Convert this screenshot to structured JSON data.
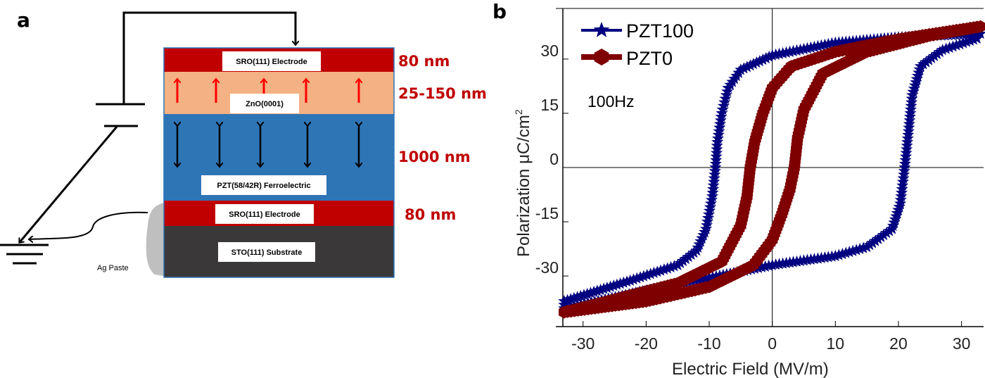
{
  "panel_a": {
    "label": "a",
    "layers": [
      {
        "name": "SRO(111) Electrode",
        "thickness": "80 nm",
        "color": "#c00000"
      },
      {
        "name": "ZnO(0001)",
        "thickness": "25-150 nm",
        "color": "#f4b183"
      },
      {
        "name": "PZT(58/42R) Ferroelectric",
        "thickness": "1000 nm",
        "color": "#2e75b6"
      },
      {
        "name": "SRO(111) Electrode",
        "thickness": "80 nm",
        "color": "#c00000"
      },
      {
        "name": "STO(111) Substrate",
        "color": "#3a3838"
      }
    ],
    "ag_paste": "Ag Paste",
    "thickness_color": "#c00000"
  },
  "panel_b": {
    "label": "b"
  },
  "chart_data": {
    "type": "line",
    "xlabel": "Electric Field (MV/m)",
    "ylabel": "Polarization μC/cm²",
    "ylabel_main": "Polarization μC/cm",
    "ylabel_sup": "2",
    "annotation": "100Hz",
    "xlim": [
      -33.2,
      33.5
    ],
    "ylim": [
      -44,
      44
    ],
    "xticks": [
      -30,
      -20,
      -10,
      0,
      10,
      20,
      30
    ],
    "yticks": [
      -30,
      -15,
      0,
      15,
      30
    ],
    "xtick_labels": [
      "-30",
      "-20",
      "-10",
      "0",
      "10",
      "20",
      "30"
    ],
    "ytick_labels": [
      "-30",
      "-15",
      "0",
      "15",
      "30"
    ],
    "legend_position": "top-left",
    "series": [
      {
        "name": "PZT100",
        "color": "#000080",
        "marker": "star",
        "x": [
          33,
          20,
          10,
          0,
          -5,
          -7,
          -8,
          -8.7,
          -9,
          -9.5,
          -10.5,
          -12,
          -15,
          -22,
          -33,
          -33,
          -20,
          -10,
          0,
          10,
          15,
          19,
          20.3,
          21,
          21.6,
          22.2,
          23.5,
          27,
          33
        ],
        "y": [
          37,
          36,
          34.5,
          31,
          27,
          22,
          15,
          7,
          0,
          -8,
          -17,
          -23,
          -27,
          -31,
          -37,
          -39,
          -34,
          -30.5,
          -27,
          -24.5,
          -22,
          -17,
          -10,
          0,
          10,
          20,
          28,
          32.5,
          36
        ]
      },
      {
        "name": "PZT0",
        "color": "#7f0000",
        "marker": "hexagon",
        "x": [
          33,
          20,
          10,
          3,
          0,
          -1.5,
          -2.8,
          -3.5,
          -4,
          -5,
          -8,
          -15,
          -25,
          -33,
          -33,
          -20,
          -10,
          -3,
          0,
          1.5,
          2.8,
          3.5,
          4,
          5,
          8,
          15,
          25,
          33
        ],
        "y": [
          39,
          35.5,
          32,
          28,
          22,
          15,
          7,
          0,
          -8,
          -16,
          -26,
          -32,
          -36.5,
          -40,
          -40,
          -37,
          -33,
          -27,
          -20,
          -13,
          -6,
          0,
          8,
          16,
          26,
          32,
          36.5,
          39
        ]
      }
    ]
  }
}
